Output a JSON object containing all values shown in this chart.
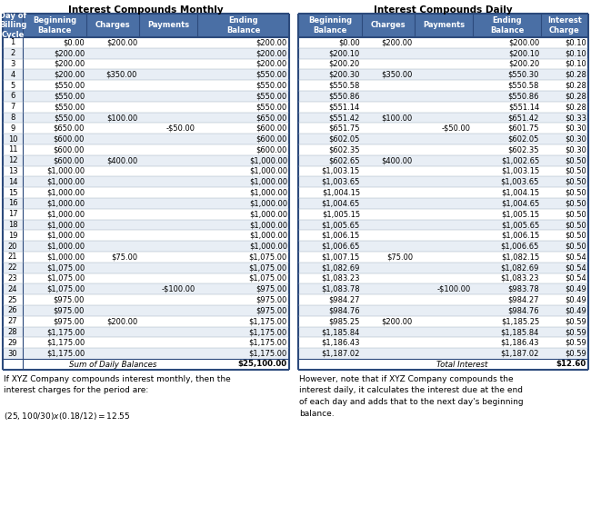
{
  "title_left": "Interest Compounds Monthly",
  "title_right": "Interest Compounds Daily",
  "headers_left": [
    "Day of\nBilling\nCycle",
    "Beginning\nBalance",
    "Charges",
    "Payments",
    "Ending\nBalance"
  ],
  "headers_right": [
    "Beginning\nBalance",
    "Charges",
    "Payments",
    "Ending\nBalance",
    "Interest\nCharge"
  ],
  "days": [
    1,
    2,
    3,
    4,
    5,
    6,
    7,
    8,
    9,
    10,
    11,
    12,
    13,
    14,
    15,
    16,
    17,
    18,
    19,
    20,
    21,
    22,
    23,
    24,
    25,
    26,
    27,
    28,
    29,
    30
  ],
  "monthly": {
    "beg_balance": [
      "$0.00",
      "$200.00",
      "$200.00",
      "$200.00",
      "$550.00",
      "$550.00",
      "$550.00",
      "$550.00",
      "$650.00",
      "$600.00",
      "$600.00",
      "$600.00",
      "$1,000.00",
      "$1,000.00",
      "$1,000.00",
      "$1,000.00",
      "$1,000.00",
      "$1,000.00",
      "$1,000.00",
      "$1,000.00",
      "$1,000.00",
      "$1,075.00",
      "$1,075.00",
      "$1,075.00",
      "$975.00",
      "$975.00",
      "$975.00",
      "$1,175.00",
      "$1,175.00",
      "$1,175.00"
    ],
    "charges": [
      "$200.00",
      "",
      "",
      "$350.00",
      "",
      "",
      "",
      "$100.00",
      "",
      "",
      "",
      "$400.00",
      "",
      "",
      "",
      "",
      "",
      "",
      "",
      "",
      "$75.00",
      "",
      "",
      "",
      "",
      "",
      "$200.00",
      "",
      "",
      ""
    ],
    "payments": [
      "",
      "",
      "",
      "",
      "",
      "",
      "",
      "",
      "-$50.00",
      "",
      "",
      "",
      "",
      "",
      "",
      "",
      "",
      "",
      "",
      "",
      "",
      "",
      "",
      "-$100.00",
      "",
      "",
      "",
      "",
      "",
      ""
    ],
    "end_balance": [
      "$200.00",
      "$200.00",
      "$200.00",
      "$550.00",
      "$550.00",
      "$550.00",
      "$550.00",
      "$650.00",
      "$600.00",
      "$600.00",
      "$600.00",
      "$1,000.00",
      "$1,000.00",
      "$1,000.00",
      "$1,000.00",
      "$1,000.00",
      "$1,000.00",
      "$1,000.00",
      "$1,000.00",
      "$1,000.00",
      "$1,075.00",
      "$1,075.00",
      "$1,075.00",
      "$975.00",
      "$975.00",
      "$975.00",
      "$1,175.00",
      "$1,175.00",
      "$1,175.00",
      "$1,175.00"
    ]
  },
  "daily": {
    "beg_balance": [
      "$0.00",
      "$200.10",
      "$200.20",
      "$200.30",
      "$550.58",
      "$550.86",
      "$551.14",
      "$551.42",
      "$651.75",
      "$602.05",
      "$602.35",
      "$602.65",
      "$1,003.15",
      "$1,003.65",
      "$1,004.15",
      "$1,004.65",
      "$1,005.15",
      "$1,005.65",
      "$1,006.15",
      "$1,006.65",
      "$1,007.15",
      "$1,082.69",
      "$1,083.23",
      "$1,083.78",
      "$984.27",
      "$984.76",
      "$985.25",
      "$1,185.84",
      "$1,186.43",
      "$1,187.02"
    ],
    "charges": [
      "$200.00",
      "",
      "",
      "$350.00",
      "",
      "",
      "",
      "$100.00",
      "",
      "",
      "",
      "$400.00",
      "",
      "",
      "",
      "",
      "",
      "",
      "",
      "",
      "$75.00",
      "",
      "",
      "",
      "",
      "",
      "$200.00",
      "",
      "",
      ""
    ],
    "payments": [
      "",
      "",
      "",
      "",
      "",
      "",
      "",
      "",
      "-$50.00",
      "",
      "",
      "",
      "",
      "",
      "",
      "",
      "",
      "",
      "",
      "",
      "",
      "",
      "",
      "-$100.00",
      "",
      "",
      "",
      "",
      "",
      ""
    ],
    "end_balance": [
      "$200.00",
      "$200.10",
      "$200.20",
      "$550.30",
      "$550.58",
      "$550.86",
      "$551.14",
      "$651.42",
      "$601.75",
      "$602.05",
      "$602.35",
      "$1,002.65",
      "$1,003.15",
      "$1,003.65",
      "$1,004.15",
      "$1,004.65",
      "$1,005.15",
      "$1,005.65",
      "$1,006.15",
      "$1,006.65",
      "$1,082.15",
      "$1,082.69",
      "$1,083.23",
      "$983.78",
      "$984.27",
      "$984.76",
      "$1,185.25",
      "$1,185.84",
      "$1,186.43",
      "$1,187.02"
    ],
    "interest": [
      "$0.10",
      "$0.10",
      "$0.10",
      "$0.28",
      "$0.28",
      "$0.28",
      "$0.28",
      "$0.33",
      "$0.30",
      "$0.30",
      "$0.30",
      "$0.50",
      "$0.50",
      "$0.50",
      "$0.50",
      "$0.50",
      "$0.50",
      "$0.50",
      "$0.50",
      "$0.50",
      "$0.54",
      "$0.54",
      "$0.54",
      "$0.49",
      "$0.49",
      "$0.49",
      "$0.59",
      "$0.59",
      "$0.59",
      "$0.59"
    ]
  },
  "footer_left_label": "Sum of Daily Balances",
  "footer_left_value": "$25,100.00",
  "footer_right_label": "Total Interest",
  "footer_right_value": "$12.60",
  "note_left": "If XYZ Company compounds interest monthly, then the\ninterest charges for the period are:\n\n($25,100/30) x (0.18/12) = $12.55",
  "note_right": "However, note that if XYZ Company compounds the\ninterest daily, it calculates the interest due at the end\nof each day and adds that to the next day's beginning\nbalance.",
  "header_bg": "#4a6fa5",
  "header_fg": "#ffffff",
  "border_color": "#2c4a7c",
  "row_bg_alt": "#e8eef5"
}
